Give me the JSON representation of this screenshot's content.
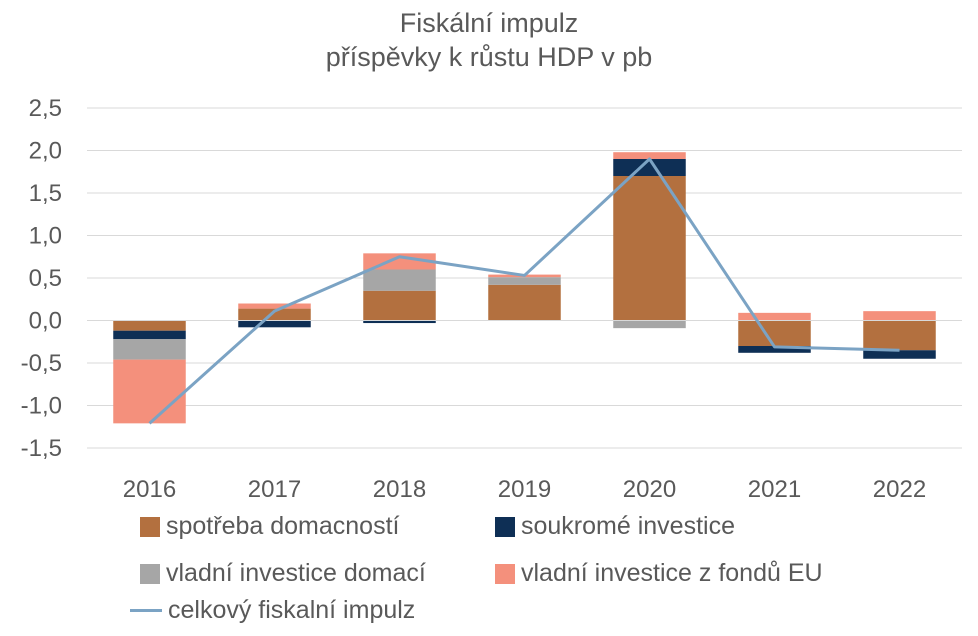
{
  "chart_data": {
    "type": "bar",
    "stacked": true,
    "title": "Fiskální impulz",
    "subtitle": "příspěvky k růstu HDP v pb",
    "categories": [
      "2016",
      "2017",
      "2018",
      "2019",
      "2020",
      "2021",
      "2022"
    ],
    "ylim": [
      -1.5,
      2.5
    ],
    "yticks": [
      -1.5,
      -1.0,
      -0.5,
      0.0,
      0.5,
      1.0,
      1.5,
      2.0,
      2.5
    ],
    "ytick_labels": [
      "-1,5",
      "-1,0",
      "-0,5",
      "0,0",
      "0,5",
      "1,0",
      "1,5",
      "2,0",
      "2,5"
    ],
    "grid": true,
    "legend_position": "bottom",
    "series": [
      {
        "name": "spotřeba domacností",
        "color": "#b3703f",
        "values": [
          -0.12,
          0.14,
          0.35,
          0.42,
          1.7,
          -0.3,
          -0.35
        ]
      },
      {
        "name": "soukromé investice",
        "color": "#0e2f55",
        "values": [
          -0.1,
          -0.08,
          -0.03,
          0.0,
          0.2,
          -0.08,
          -0.1
        ]
      },
      {
        "name": "vladní investice domací",
        "color": "#a6a6a6",
        "values": [
          -0.24,
          0.0,
          0.25,
          0.09,
          -0.09,
          0.0,
          0.0
        ]
      },
      {
        "name": "vladní investice z fondů EU",
        "color": "#f4907c",
        "values": [
          -0.75,
          0.06,
          0.19,
          0.03,
          0.08,
          0.09,
          0.11
        ]
      }
    ],
    "line": {
      "name": "celkový fiskalní impulz",
      "color": "#7ba3c4",
      "values": [
        -1.21,
        0.11,
        0.75,
        0.53,
        1.9,
        -0.31,
        -0.35
      ]
    }
  }
}
